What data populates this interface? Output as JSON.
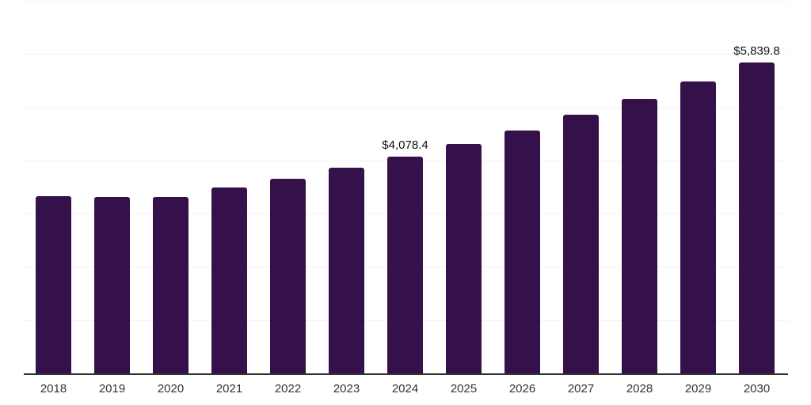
{
  "chart_data": {
    "type": "bar",
    "title": "",
    "xlabel": "",
    "ylabel": "",
    "categories": [
      "2018",
      "2019",
      "2020",
      "2021",
      "2022",
      "2023",
      "2024",
      "2025",
      "2026",
      "2027",
      "2028",
      "2029",
      "2030"
    ],
    "values": [
      3325,
      3320,
      3315,
      3500,
      3650,
      3870,
      4078.4,
      4310,
      4570,
      4855,
      5155,
      5480,
      5839.8
    ],
    "data_labels": [
      "",
      "",
      "",
      "",
      "",
      "",
      "$4,078.4",
      "",
      "",
      "",
      "",
      "",
      "$5,839.8"
    ],
    "ylim": [
      0,
      7000
    ],
    "gridlines": [
      1000,
      2000,
      3000,
      4000,
      5000,
      6000,
      7000
    ],
    "grid": "horizontal",
    "legend": "none"
  },
  "colors": {
    "bar": "#35114B",
    "axis": "#333333",
    "gridline": "#f2f2f2",
    "value_label": "#111111",
    "tick_label": "#333333",
    "background": "#ffffff"
  }
}
